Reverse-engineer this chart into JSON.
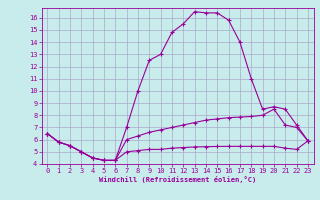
{
  "xlabel": "Windchill (Refroidissement éolien,°C)",
  "bg_color": "#c8ecec",
  "grid_color": "#aaaacc",
  "line_color": "#990099",
  "x_hours": [
    0,
    1,
    2,
    3,
    4,
    5,
    6,
    7,
    8,
    9,
    10,
    11,
    12,
    13,
    14,
    15,
    16,
    17,
    18,
    19,
    20,
    21,
    22,
    23
  ],
  "y_temp": [
    6.5,
    5.8,
    5.5,
    5.0,
    4.5,
    4.3,
    4.3,
    7.0,
    10.0,
    12.5,
    13.0,
    14.8,
    15.5,
    16.5,
    16.4,
    16.4,
    15.8,
    14.0,
    11.0,
    8.5,
    8.7,
    8.5,
    7.2,
    5.9
  ],
  "y_windchill": [
    6.5,
    5.8,
    5.5,
    5.0,
    4.5,
    4.3,
    4.3,
    6.0,
    6.3,
    6.6,
    6.8,
    7.0,
    7.2,
    7.4,
    7.6,
    7.7,
    7.8,
    7.85,
    7.9,
    8.0,
    8.5,
    7.2,
    7.0,
    5.9
  ],
  "y_apparent": [
    6.5,
    5.8,
    5.5,
    5.0,
    4.5,
    4.3,
    4.3,
    5.0,
    5.1,
    5.2,
    5.2,
    5.3,
    5.35,
    5.4,
    5.42,
    5.44,
    5.45,
    5.45,
    5.45,
    5.45,
    5.45,
    5.3,
    5.2,
    5.9
  ],
  "ylim_min": 4,
  "ylim_max": 16.8,
  "xlim_min": -0.5,
  "xlim_max": 23.5,
  "yticks": [
    4,
    5,
    6,
    7,
    8,
    9,
    10,
    11,
    12,
    13,
    14,
    15,
    16
  ],
  "xticks": [
    0,
    1,
    2,
    3,
    4,
    5,
    6,
    7,
    8,
    9,
    10,
    11,
    12,
    13,
    14,
    15,
    16,
    17,
    18,
    19,
    20,
    21,
    22,
    23
  ]
}
